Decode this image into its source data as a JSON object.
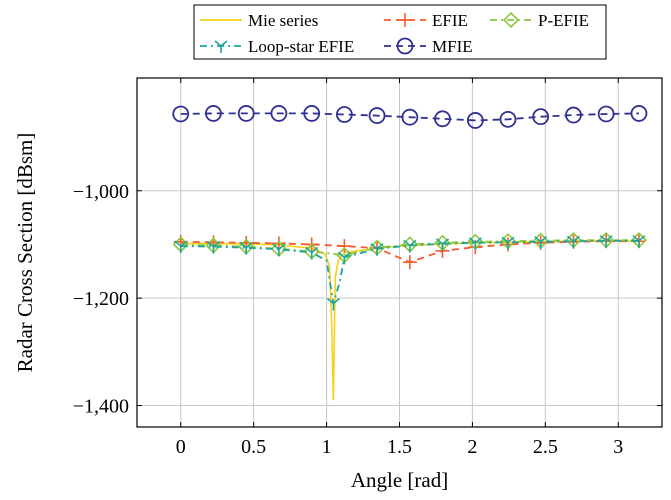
{
  "chart_data": {
    "type": "line",
    "xlabel": "Angle [rad]",
    "ylabel": "Radar Cross Section [dBsm]",
    "xlim": [
      -0.3,
      3.3
    ],
    "ylim": [
      -1440,
      -790
    ],
    "xticks": [
      0,
      0.5,
      1,
      1.5,
      2,
      2.5,
      3
    ],
    "xtick_labels": [
      "0",
      "0.5",
      "1",
      "1.5",
      "2",
      "2.5",
      "3"
    ],
    "yticks": [
      -1000,
      -1200,
      -1400
    ],
    "ytick_labels": [
      "−1,000",
      "−1,200",
      "−1,400"
    ],
    "grid": true,
    "legend_position": "top-center",
    "series": [
      {
        "name": "Mie series",
        "color": "#f5d21f",
        "dash": "solid",
        "marker": "none",
        "x": [
          0,
          0.224,
          0.449,
          0.673,
          0.898,
          0.99,
          1.02,
          1.035,
          1.047,
          1.06,
          1.08,
          1.122,
          1.346,
          1.571,
          1.795,
          2.02,
          2.244,
          2.468,
          2.693,
          2.917,
          3.142
        ],
        "y": [
          -1098,
          -1098,
          -1099,
          -1101,
          -1107,
          -1118,
          -1140,
          -1250,
          -1390,
          -1160,
          -1130,
          -1115,
          -1107,
          -1102,
          -1099,
          -1097,
          -1096,
          -1095,
          -1094,
          -1094,
          -1094
        ]
      },
      {
        "name": "EFIE",
        "color": "#f25c2f",
        "dash": "dashed",
        "marker": "plus",
        "x": [
          0,
          0.224,
          0.449,
          0.673,
          0.898,
          1.122,
          1.346,
          1.571,
          1.795,
          2.02,
          2.244,
          2.468,
          2.693,
          2.917,
          3.142
        ],
        "y": [
          -1095,
          -1096,
          -1097,
          -1098,
          -1100,
          -1103,
          -1107,
          -1133,
          -1112,
          -1105,
          -1100,
          -1097,
          -1095,
          -1094,
          -1094
        ]
      },
      {
        "name": "P-EFIE",
        "color": "#8ec63f",
        "dash": "dashdot",
        "marker": "diamond",
        "x": [
          0,
          0.224,
          0.449,
          0.673,
          0.898,
          1.122,
          1.346,
          1.571,
          1.795,
          2.02,
          2.244,
          2.468,
          2.693,
          2.917,
          3.142
        ],
        "y": [
          -1100,
          -1102,
          -1104,
          -1108,
          -1113,
          -1120,
          -1106,
          -1100,
          -1097,
          -1095,
          -1094,
          -1093,
          -1092,
          -1092,
          -1092
        ]
      },
      {
        "name": "Loop-star EFIE",
        "color": "#1aa79a",
        "dash": "dashdot",
        "marker": "tri",
        "x": [
          0,
          0.224,
          0.449,
          0.673,
          0.898,
          1.0,
          1.047,
          1.09,
          1.122,
          1.346,
          1.571,
          1.795,
          2.02,
          2.244,
          2.468,
          2.693,
          2.917,
          3.142
        ],
        "y": [
          -1103,
          -1104,
          -1106,
          -1109,
          -1115,
          -1130,
          -1210,
          -1170,
          -1124,
          -1108,
          -1102,
          -1099,
          -1097,
          -1096,
          -1095,
          -1094,
          -1093,
          -1093
        ]
      },
      {
        "name": "MFIE",
        "color": "#2e3192",
        "dash": "dashed",
        "marker": "circle",
        "x": [
          0,
          0.224,
          0.449,
          0.673,
          0.898,
          1.122,
          1.346,
          1.571,
          1.795,
          2.02,
          2.244,
          2.468,
          2.693,
          2.917,
          3.142
        ],
        "y": [
          -857,
          -856,
          -856,
          -856,
          -856,
          -858,
          -860,
          -863,
          -866,
          -869,
          -867,
          -862,
          -859,
          -857,
          -856
        ]
      }
    ]
  }
}
